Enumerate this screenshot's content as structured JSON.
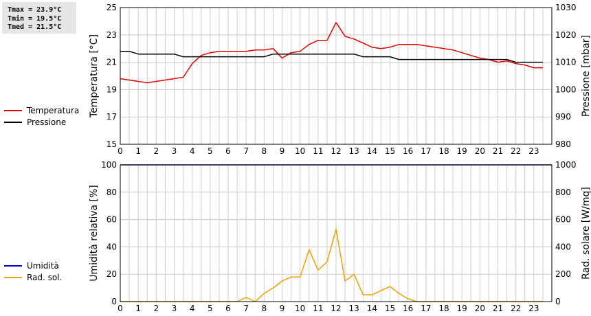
{
  "stats": {
    "tmax": "Tmax = 23.9°C",
    "tmin": "Tmin = 19.5°C",
    "tmed": "Tmed = 21.5°C"
  },
  "colors": {
    "temperatura": "#dd0000",
    "pressione": "#000000",
    "umidita": "#0000cc",
    "rad_sol": "#f0a000",
    "grid": "#cccccc"
  },
  "legend_top": [
    {
      "label": "Temperatura",
      "color": "#dd0000"
    },
    {
      "label": "Pressione",
      "color": "#000000"
    }
  ],
  "legend_bottom": [
    {
      "label": "Umidità",
      "color": "#0000cc"
    },
    {
      "label": "Rad. sol.",
      "color": "#f0a000"
    }
  ],
  "chart_data": [
    {
      "type": "line",
      "xlabel": "",
      "xlim": [
        0,
        24
      ],
      "xticks": [
        0,
        1,
        2,
        3,
        4,
        5,
        6,
        7,
        8,
        9,
        10,
        11,
        12,
        13,
        14,
        15,
        16,
        17,
        18,
        19,
        20,
        21,
        22,
        23
      ],
      "grid": true,
      "y_left": {
        "label": "Temperatura [°C]",
        "lim": [
          15,
          25
        ],
        "ticks": [
          15,
          17,
          19,
          21,
          23,
          25
        ]
      },
      "y_right": {
        "label": "Pressione [mbar]",
        "lim": [
          980,
          1030
        ],
        "ticks": [
          980,
          990,
          1000,
          1010,
          1020,
          1030
        ]
      },
      "series": [
        {
          "name": "Temperatura",
          "axis": "left",
          "color": "#dd0000",
          "x": [
            0,
            0.5,
            1,
            1.5,
            2,
            2.5,
            3,
            3.5,
            4,
            4.5,
            5,
            5.5,
            6,
            6.5,
            7,
            7.5,
            8,
            8.5,
            9,
            9.5,
            10,
            10.5,
            11,
            11.5,
            12,
            12.5,
            13,
            13.5,
            14,
            14.5,
            15,
            15.5,
            16,
            16.5,
            17,
            17.5,
            18,
            18.5,
            19,
            19.5,
            20,
            20.5,
            21,
            21.5,
            22,
            22.5,
            23,
            23.5
          ],
          "y": [
            19.8,
            19.7,
            19.6,
            19.5,
            19.6,
            19.7,
            19.8,
            19.9,
            20.9,
            21.5,
            21.7,
            21.8,
            21.8,
            21.8,
            21.8,
            21.9,
            21.9,
            22.0,
            21.3,
            21.7,
            21.8,
            22.3,
            22.6,
            22.6,
            23.9,
            22.9,
            22.7,
            22.4,
            22.1,
            22.0,
            22.1,
            22.3,
            22.3,
            22.3,
            22.2,
            22.1,
            22.0,
            21.9,
            21.7,
            21.5,
            21.3,
            21.2,
            21.0,
            21.1,
            20.9,
            20.8,
            20.6,
            20.6
          ]
        },
        {
          "name": "Pressione",
          "axis": "right",
          "color": "#000000",
          "x": [
            0,
            0.5,
            1,
            1.5,
            2,
            2.5,
            3,
            3.5,
            4,
            4.5,
            5,
            5.5,
            6,
            6.5,
            7,
            7.5,
            8,
            8.5,
            9,
            9.5,
            10,
            10.5,
            11,
            11.5,
            12,
            12.5,
            13,
            13.5,
            14,
            14.5,
            15,
            15.5,
            16,
            16.5,
            17,
            17.5,
            18,
            18.5,
            19,
            19.5,
            20,
            20.5,
            21,
            21.5,
            22,
            22.5,
            23,
            23.5
          ],
          "y": [
            1014,
            1014,
            1013,
            1013,
            1013,
            1013,
            1013,
            1012,
            1012,
            1012,
            1012,
            1012,
            1012,
            1012,
            1012,
            1012,
            1012,
            1013,
            1013,
            1013,
            1013,
            1013,
            1013,
            1013,
            1013,
            1013,
            1013,
            1012,
            1012,
            1012,
            1012,
            1011,
            1011,
            1011,
            1011,
            1011,
            1011,
            1011,
            1011,
            1011,
            1011,
            1011,
            1011,
            1011,
            1010,
            1010,
            1010,
            1010
          ]
        }
      ]
    },
    {
      "type": "line",
      "xlabel": "",
      "xlim": [
        0,
        24
      ],
      "xticks": [
        0,
        1,
        2,
        3,
        4,
        5,
        6,
        7,
        8,
        9,
        10,
        11,
        12,
        13,
        14,
        15,
        16,
        17,
        18,
        19,
        20,
        21,
        22,
        23
      ],
      "grid": true,
      "y_left": {
        "label": "Umidità relativa [%]",
        "lim": [
          0,
          100
        ],
        "ticks": [
          0,
          20,
          40,
          60,
          80,
          100
        ]
      },
      "y_right": {
        "label": "Rad. solare [W/mq]",
        "lim": [
          0,
          1000
        ],
        "ticks": [
          0,
          200,
          400,
          600,
          800,
          1000
        ]
      },
      "series": [
        {
          "name": "Umidità",
          "axis": "left",
          "color": "#0000cc",
          "x": [
            0,
            24
          ],
          "y": [
            100,
            100
          ]
        },
        {
          "name": "Rad. sol.",
          "axis": "right",
          "color": "#f0a000",
          "x": [
            0,
            0.5,
            1,
            1.5,
            2,
            2.5,
            3,
            3.5,
            4,
            4.5,
            5,
            5.5,
            6,
            6.5,
            7,
            7.5,
            8,
            8.5,
            9,
            9.5,
            10,
            10.5,
            11,
            11.5,
            12,
            12.5,
            13,
            13.5,
            14,
            14.5,
            15,
            15.5,
            16,
            16.5,
            17,
            17.5,
            18,
            18.5,
            19,
            19.5,
            20,
            20.5,
            21,
            21.5,
            22,
            22.5,
            23,
            23.5
          ],
          "y": [
            0,
            0,
            0,
            0,
            0,
            0,
            0,
            0,
            0,
            0,
            0,
            0,
            0,
            0,
            30,
            0,
            60,
            100,
            150,
            180,
            180,
            380,
            230,
            290,
            530,
            150,
            200,
            50,
            50,
            80,
            110,
            60,
            20,
            0,
            0,
            0,
            0,
            0,
            0,
            0,
            0,
            0,
            0,
            0,
            0,
            0,
            0,
            0
          ]
        }
      ]
    }
  ]
}
